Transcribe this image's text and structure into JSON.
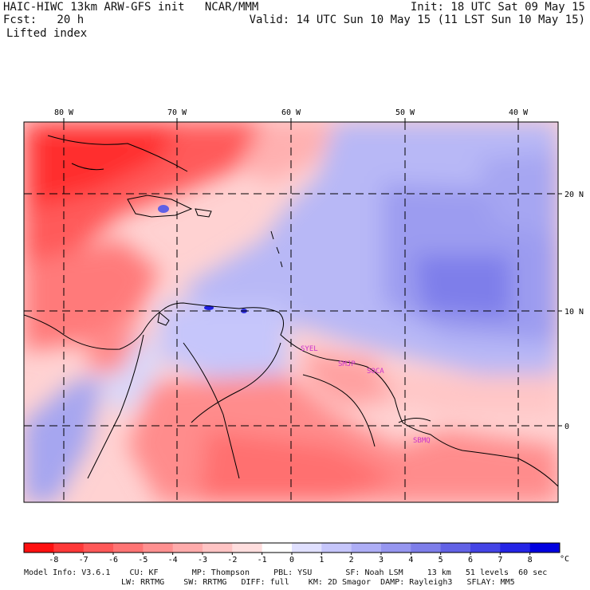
{
  "header": {
    "line1_left": "HAIC-HIWC 13km ARW-GFS init   NCAR/MMM",
    "line1_right": "Init: 18 UTC Sat 09 May 15",
    "line2_left": "Fcst:   20 h",
    "line2_right": "Valid: 14 UTC Sun 10 May 15 (11 LST Sun 10 May 15)",
    "field": "Lifted index"
  },
  "map": {
    "lon_labels": [
      "80 W",
      "70 W",
      "60 W",
      "50 W",
      "40 W"
    ],
    "lat_labels": [
      "20 N",
      "10 N",
      "0"
    ],
    "stations": [
      "SYEL",
      "SMJP",
      "SOCA",
      "SBMQ"
    ],
    "station_color": "#cc33cc"
  },
  "colorbar": {
    "labels": [
      "-8",
      "-7",
      "-6",
      "-5",
      "-4",
      "-3",
      "-2",
      "-1",
      "0",
      "1",
      "2",
      "3",
      "4",
      "5",
      "6",
      "7",
      "8"
    ],
    "unit": "°C",
    "colors": [
      "#ff1010",
      "#ff3838",
      "#ff5858",
      "#ff7474",
      "#ff9090",
      "#ffabab",
      "#ffc4c4",
      "#ffdede",
      "#ffffff",
      "#e0e0ff",
      "#c6c6fb",
      "#aeaef6",
      "#9696f0",
      "#7e7eea",
      "#6262e6",
      "#4444e6",
      "#2424e6",
      "#0000e0"
    ]
  },
  "model_info": {
    "line1": "Model Info: V3.6.1    CU: KF       MP: Thompson     PBL: YSU       SF: Noah LSM     13 km   51 levels  60 sec",
    "line2": "LW: RRTMG    SW: RRTMG   DIFF: full    KM: 2D Smagor  DAMP: Rayleigh3   SFLAY: MM5"
  }
}
